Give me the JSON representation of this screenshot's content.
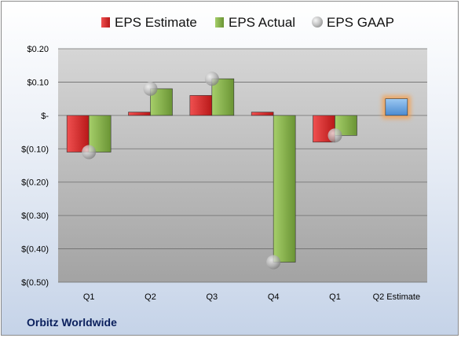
{
  "footer": {
    "company": "Orbitz Worldwide"
  },
  "legend": {
    "items": [
      {
        "label": "EPS Estimate",
        "color": "#d42a2a"
      },
      {
        "label": "EPS Actual",
        "color": "#86b04a"
      },
      {
        "label": "EPS GAAP",
        "color": "#b0b0b0"
      }
    ]
  },
  "chart_data": {
    "type": "bar",
    "title": "",
    "xlabel": "",
    "ylabel": "",
    "categories": [
      "Q1",
      "Q2",
      "Q3",
      "Q4",
      "Q1",
      "Q2 Estimate"
    ],
    "ylim": [
      -0.5,
      0.2
    ],
    "yticks": [
      0.2,
      0.1,
      0,
      -0.1,
      -0.2,
      -0.3,
      -0.4,
      -0.5
    ],
    "ytick_labels": [
      "$0.20",
      "$0.10",
      "$-",
      "$(0.10)",
      "$(0.20)",
      "$(0.30)",
      "$(0.40)",
      "$(0.50)"
    ],
    "grid": true,
    "legend_position": "top",
    "series": [
      {
        "name": "EPS Estimate",
        "type": "bar",
        "color": "#d42a2a",
        "values": [
          -0.11,
          0.01,
          0.06,
          0.01,
          -0.08,
          null
        ]
      },
      {
        "name": "EPS Actual",
        "type": "bar",
        "color": "#86b04a",
        "values": [
          -0.11,
          0.08,
          0.11,
          -0.44,
          -0.06,
          null
        ]
      },
      {
        "name": "EPS GAAP",
        "type": "marker",
        "color": "#b0b0b0",
        "values": [
          -0.11,
          0.08,
          0.11,
          -0.44,
          -0.06,
          null
        ]
      },
      {
        "name": "Q2 Estimate",
        "type": "bar",
        "color": "#6aa6e0",
        "highlight": "#f6a04d",
        "values": [
          null,
          null,
          null,
          null,
          null,
          0.05
        ]
      }
    ]
  }
}
